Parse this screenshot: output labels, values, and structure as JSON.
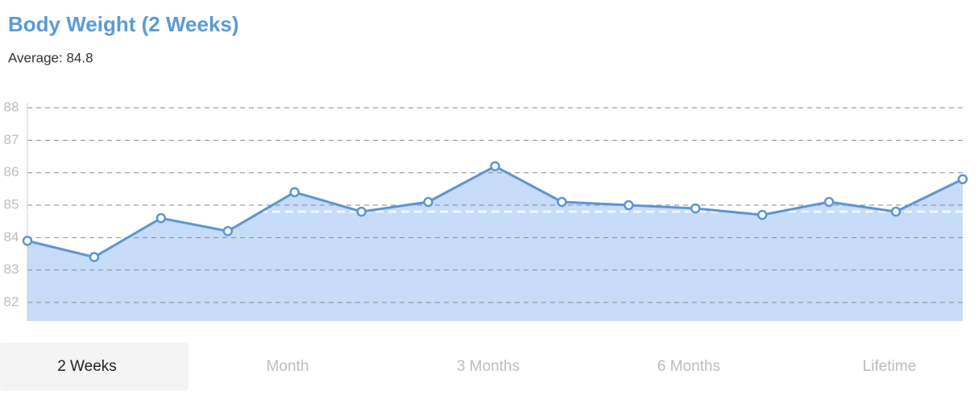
{
  "header": {
    "title": "Body Weight (2 Weeks)",
    "average": {
      "value": 84.8,
      "label": "Average: 84.8"
    }
  },
  "chart_data": {
    "type": "area",
    "categories": [
      null,
      null,
      null,
      null,
      null,
      null,
      null,
      null,
      null,
      null,
      null,
      null,
      null,
      null,
      null
    ],
    "series": [
      {
        "name": null,
        "color": "#5b95d6",
        "values": [
          83.9,
          83.4,
          84.6,
          84.2,
          85.4,
          84.8,
          85.1,
          86.2,
          85.1,
          85.0,
          84.9,
          84.7,
          85.1,
          84.8,
          85.8
        ]
      }
    ],
    "area_color": "#c6dcf8",
    "ylim": [
      81.43,
      88.15
    ],
    "yticks": [
      82,
      83,
      84,
      85,
      86,
      87,
      88
    ],
    "grid": true
  },
  "tabs": [
    {
      "label": "2 Weeks",
      "selected": true
    },
    {
      "label": "Month",
      "selected": false
    },
    {
      "label": "3 Months",
      "selected": false
    },
    {
      "label": "6 Months",
      "selected": false
    },
    {
      "label": "Lifetime",
      "selected": false
    }
  ]
}
